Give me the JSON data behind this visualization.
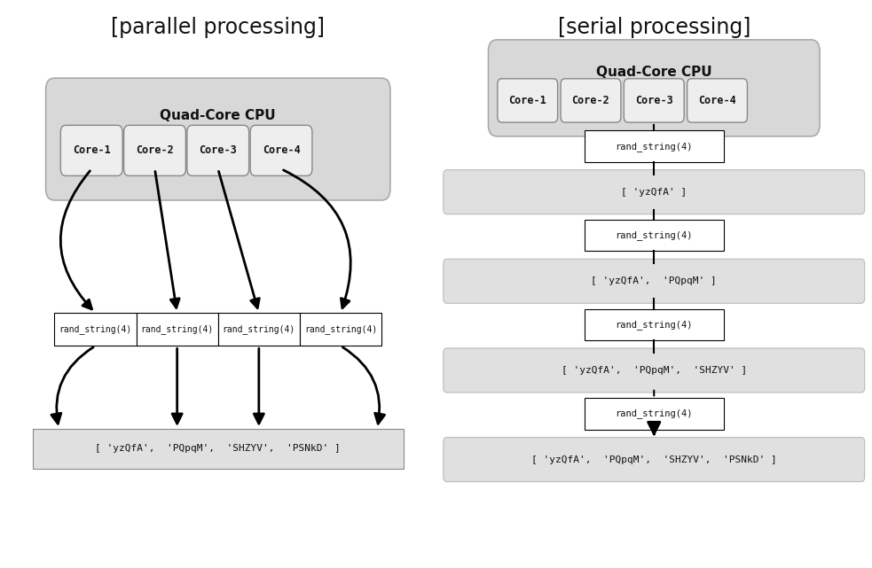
{
  "title_left": "[parallel processing]",
  "title_right": "[serial processing]",
  "cores": [
    "Core-1",
    "Core-2",
    "Core-3",
    "Core-4"
  ],
  "cpu_label": "Quad-Core CPU",
  "rand_string_label": "rand_string(4)",
  "result_labels_serial": [
    "[ 'yzQfA' ]",
    "[ 'yzQfA',  'PQpqM' ]",
    "[ 'yzQfA',  'PQpqM',  'SHZYV' ]",
    "[ 'yzQfA',  'PQpqM',  'SHZYV',  'PSNkD' ]"
  ],
  "parallel_result": "[ 'yzQfA',  'PQpqM',  'SHZYV',  'PSNkD' ]",
  "bg_color": "#ffffff",
  "box_fill_light": "#e0e0e0",
  "box_fill_white": "#ffffff",
  "box_fill_cpu": "#d4d4d4",
  "text_color": "#111111"
}
